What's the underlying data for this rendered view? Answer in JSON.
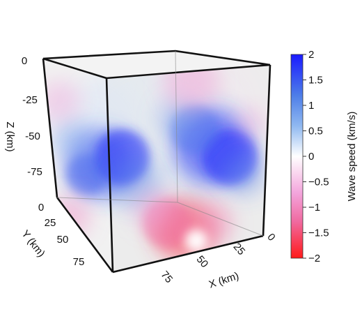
{
  "chart_data": {
    "type": "heatmap",
    "title": "",
    "axes": {
      "x": {
        "label": "X (km)",
        "ticks": [
          "75",
          "50",
          "25",
          "0"
        ],
        "range": [
          0,
          100
        ]
      },
      "y": {
        "label": "Y (km)",
        "ticks": [
          "0",
          "25",
          "50",
          "75"
        ],
        "range": [
          0,
          100
        ]
      },
      "z": {
        "label": "Z (km)",
        "ticks": [
          "0",
          "-25",
          "-50",
          "-75"
        ],
        "range": [
          -100,
          0
        ]
      }
    },
    "colorbar": {
      "label": "Wave speed  (km/s)",
      "ticks": [
        "2",
        "1.5",
        "1",
        "0.5",
        "0",
        "−0.5",
        "−1",
        "−1.5",
        "−2"
      ],
      "range": [
        -2,
        2
      ],
      "colors": {
        "low": "#ff1a1a",
        "mid": "#ffffff",
        "high": "#1a1aff"
      }
    },
    "volume_anomalies": [
      {
        "name": "fast anomaly (left face)",
        "value": 1.6
      },
      {
        "name": "fast anomaly (right face)",
        "value": 1.8
      },
      {
        "name": "slow anomaly (bottom front)",
        "value": -1.8
      },
      {
        "name": "slow anomaly (top right)",
        "value": -0.7
      },
      {
        "name": "slow anomaly (upper left)",
        "value": -0.6
      }
    ]
  }
}
